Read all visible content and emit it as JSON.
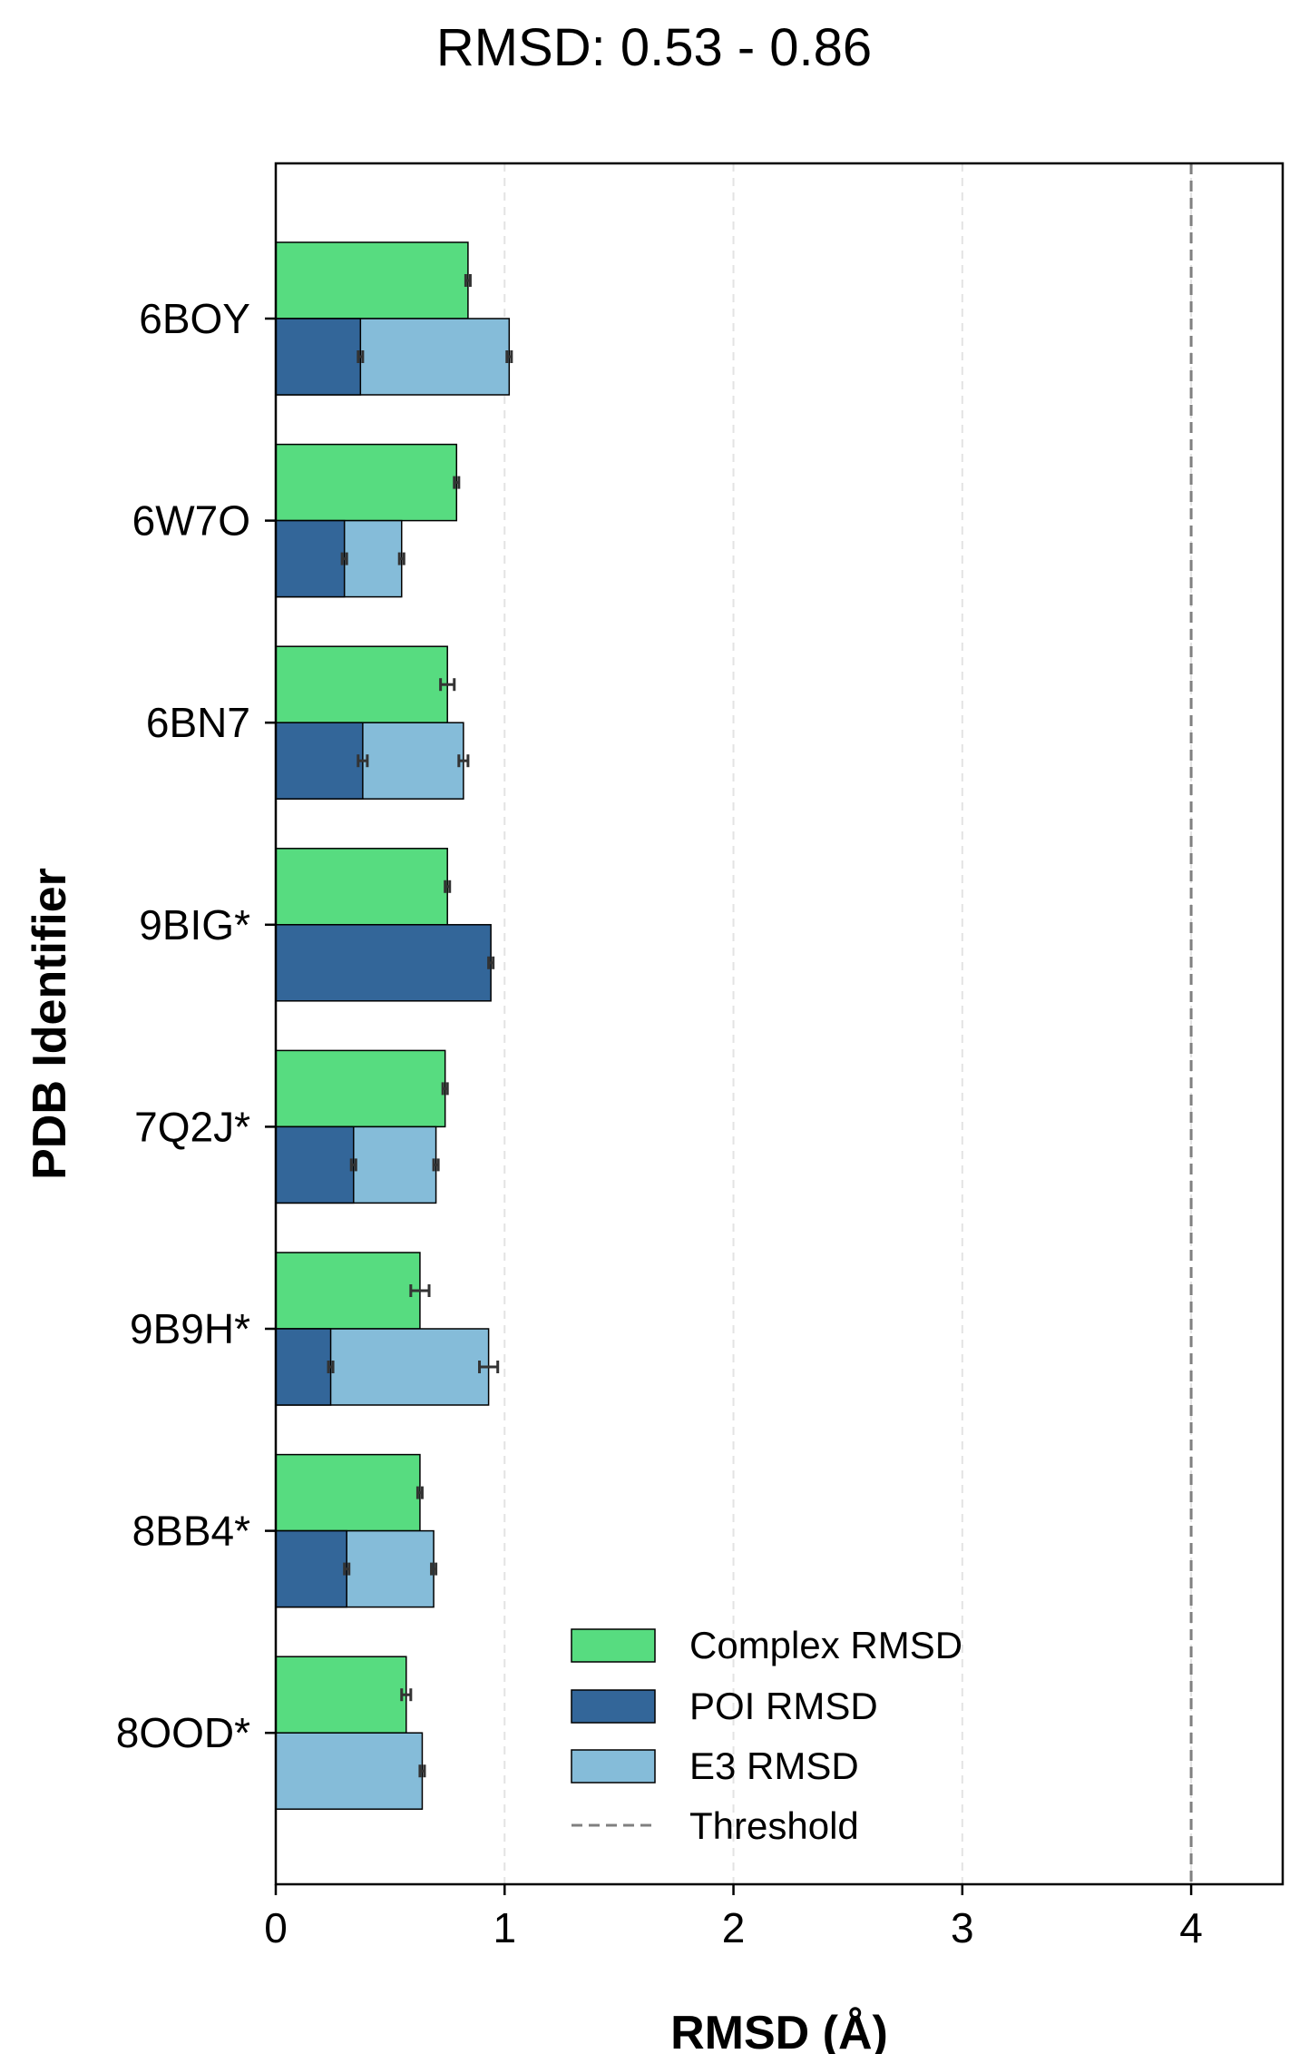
{
  "chart_data": {
    "type": "bar",
    "orientation": "horizontal",
    "title": "RMSD: 0.53 - 0.86",
    "xlabel": "RMSD (Å)",
    "ylabel": "PDB Identifier",
    "xlim": [
      0,
      4.4
    ],
    "xticks": [
      "0",
      "1",
      "2",
      "3",
      "4"
    ],
    "grid": "x dashed",
    "threshold": 4.0,
    "legend_position": "lower-right",
    "legend": [
      "Complex RMSD",
      "POI RMSD",
      "E3 RMSD",
      "Threshold"
    ],
    "colors": {
      "complex": "#57dc80",
      "poi": "#336699",
      "e3": "#85bcd9",
      "threshold": "#808080",
      "grid": "#e3e3e3"
    },
    "categories": [
      "6BOY",
      "6W7O",
      "6BN7",
      "9BIG*",
      "7Q2J*",
      "9B9H*",
      "8BB4*",
      "8OOD*"
    ],
    "series": [
      {
        "name": "Complex RMSD",
        "values": [
          0.84,
          0.79,
          0.75,
          0.75,
          0.74,
          0.63,
          0.63,
          0.57
        ],
        "errors": [
          0.01,
          0.01,
          0.03,
          0.01,
          0.01,
          0.04,
          0.01,
          0.02
        ]
      },
      {
        "name": "POI RMSD",
        "values": [
          0.37,
          0.3,
          0.38,
          0.94,
          0.34,
          0.24,
          0.31,
          null
        ],
        "errors": [
          0.01,
          0.01,
          0.02,
          0.01,
          0.01,
          0.01,
          0.01,
          null
        ]
      },
      {
        "name": "E3 RMSD",
        "values": [
          1.02,
          0.55,
          0.82,
          null,
          0.7,
          0.93,
          0.69,
          0.64
        ],
        "errors": [
          0.01,
          0.01,
          0.02,
          null,
          0.01,
          0.04,
          0.01,
          0.01
        ]
      }
    ]
  }
}
